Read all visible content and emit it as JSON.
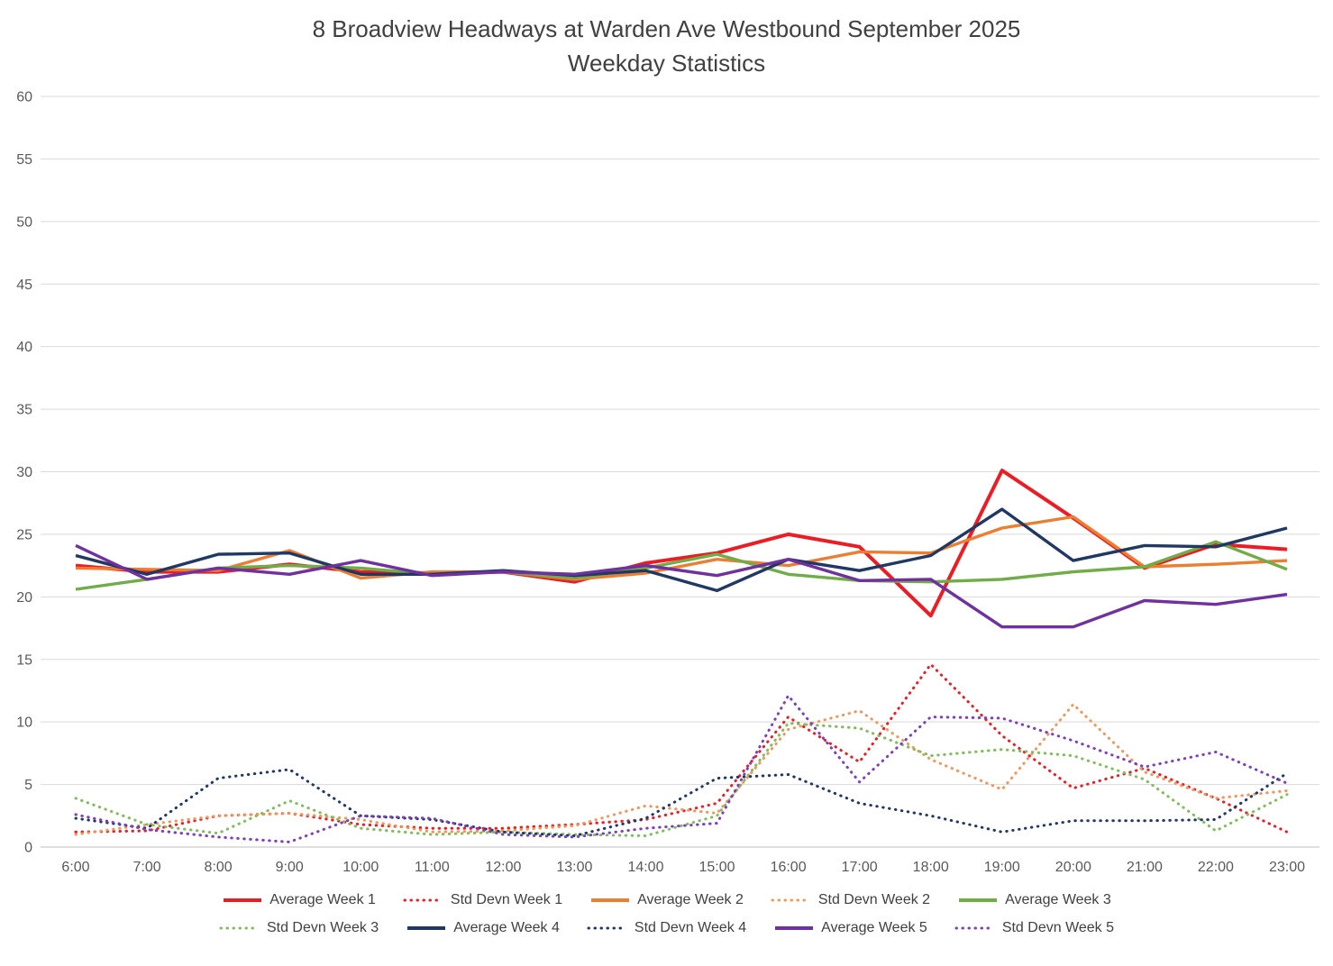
{
  "chart_data": {
    "type": "line",
    "title": "8 Broadview Headways at Warden Ave Westbound September 2025",
    "subtitle": "Weekday Statistics",
    "xlabel": "",
    "ylabel": "",
    "ylim": [
      0,
      60
    ],
    "y_tick_step": 5,
    "grid": true,
    "legend_position": "bottom",
    "x_labels": [
      "6:00",
      "7:00",
      "8:00",
      "9:00",
      "10:00",
      "11:00",
      "12:00",
      "13:00",
      "14:00",
      "15:00",
      "16:00",
      "17:00",
      "18:00",
      "19:00",
      "20:00",
      "21:00",
      "22:00",
      "23:00"
    ],
    "series": [
      {
        "name": "Average Week 1",
        "style": "solid",
        "color": "#ed1c24",
        "values": [
          22.5,
          22.0,
          22.0,
          22.6,
          22.0,
          21.9,
          22.0,
          21.2,
          22.7,
          23.5,
          25.0,
          24.0,
          18.5,
          30.1,
          26.3,
          22.3,
          24.2,
          23.8
        ]
      },
      {
        "name": "Std Devn Week 1",
        "style": "dotted",
        "color": "#ed1c24",
        "values": [
          1.2,
          1.3,
          2.5,
          2.7,
          1.8,
          1.5,
          1.5,
          1.8,
          2.2,
          3.5,
          10.4,
          6.8,
          14.6,
          8.9,
          4.7,
          6.3,
          3.9,
          1.2
        ]
      },
      {
        "name": "Average Week 2",
        "style": "solid",
        "color": "#ed7d31",
        "values": [
          22.3,
          22.2,
          22.1,
          23.7,
          21.5,
          22.0,
          22.0,
          21.4,
          21.9,
          23.0,
          22.5,
          23.6,
          23.5,
          25.5,
          26.4,
          22.4,
          22.6,
          22.9
        ]
      },
      {
        "name": "Std Devn Week 2",
        "style": "dotted",
        "color": "#f1975a",
        "values": [
          1.0,
          1.8,
          2.5,
          2.7,
          2.2,
          1.2,
          1.3,
          1.7,
          3.3,
          2.7,
          9.4,
          10.9,
          7.0,
          4.6,
          11.4,
          6.0,
          3.9,
          4.5
        ]
      },
      {
        "name": "Average Week 3",
        "style": "solid",
        "color": "#70ad47",
        "values": [
          20.6,
          21.4,
          22.3,
          22.5,
          22.3,
          21.8,
          22.0,
          21.5,
          22.3,
          23.4,
          21.8,
          21.3,
          21.2,
          21.4,
          22.0,
          22.4,
          24.4,
          22.2
        ]
      },
      {
        "name": "Std Devn Week 3",
        "style": "dotted",
        "color": "#7fbe59",
        "values": [
          3.9,
          1.8,
          1.1,
          3.7,
          1.5,
          1.0,
          1.2,
          1.0,
          0.9,
          2.5,
          9.9,
          9.5,
          7.3,
          7.8,
          7.3,
          5.4,
          1.3,
          4.2
        ]
      },
      {
        "name": "Average Week 4",
        "style": "solid",
        "color": "#1f3864",
        "values": [
          23.3,
          21.8,
          23.4,
          23.5,
          21.8,
          21.8,
          22.1,
          21.7,
          22.1,
          20.5,
          23.0,
          22.1,
          23.3,
          27.0,
          22.9,
          24.1,
          24.0,
          25.5
        ]
      },
      {
        "name": "Std Devn Week 4",
        "style": "dotted",
        "color": "#1f3864",
        "values": [
          2.3,
          1.5,
          5.5,
          6.2,
          2.5,
          2.2,
          1.2,
          0.9,
          2.3,
          5.5,
          5.8,
          3.5,
          2.5,
          1.2,
          2.1,
          2.1,
          2.2,
          5.9
        ]
      },
      {
        "name": "Average Week 5",
        "style": "solid",
        "color": "#7030a0",
        "values": [
          24.1,
          21.4,
          22.3,
          21.8,
          22.9,
          21.7,
          22.0,
          21.8,
          22.5,
          21.7,
          23.0,
          21.3,
          21.4,
          17.6,
          17.6,
          19.7,
          19.4,
          20.2
        ]
      },
      {
        "name": "Std Devn Week 5",
        "style": "dotted",
        "color": "#7d3fc1",
        "values": [
          2.6,
          1.4,
          0.8,
          0.4,
          2.5,
          2.3,
          1.0,
          0.8,
          1.5,
          1.9,
          12.1,
          5.2,
          10.4,
          10.3,
          8.5,
          6.4,
          7.6,
          5.1
        ]
      }
    ],
    "legend_rows": [
      [
        0,
        1,
        2,
        3,
        4
      ],
      [
        5,
        6,
        7,
        8,
        9
      ]
    ],
    "colors": {
      "grid": "#d9d9d9",
      "axis": "#bfbfbf",
      "tick_text": "#595959",
      "title_text": "#404040"
    }
  }
}
